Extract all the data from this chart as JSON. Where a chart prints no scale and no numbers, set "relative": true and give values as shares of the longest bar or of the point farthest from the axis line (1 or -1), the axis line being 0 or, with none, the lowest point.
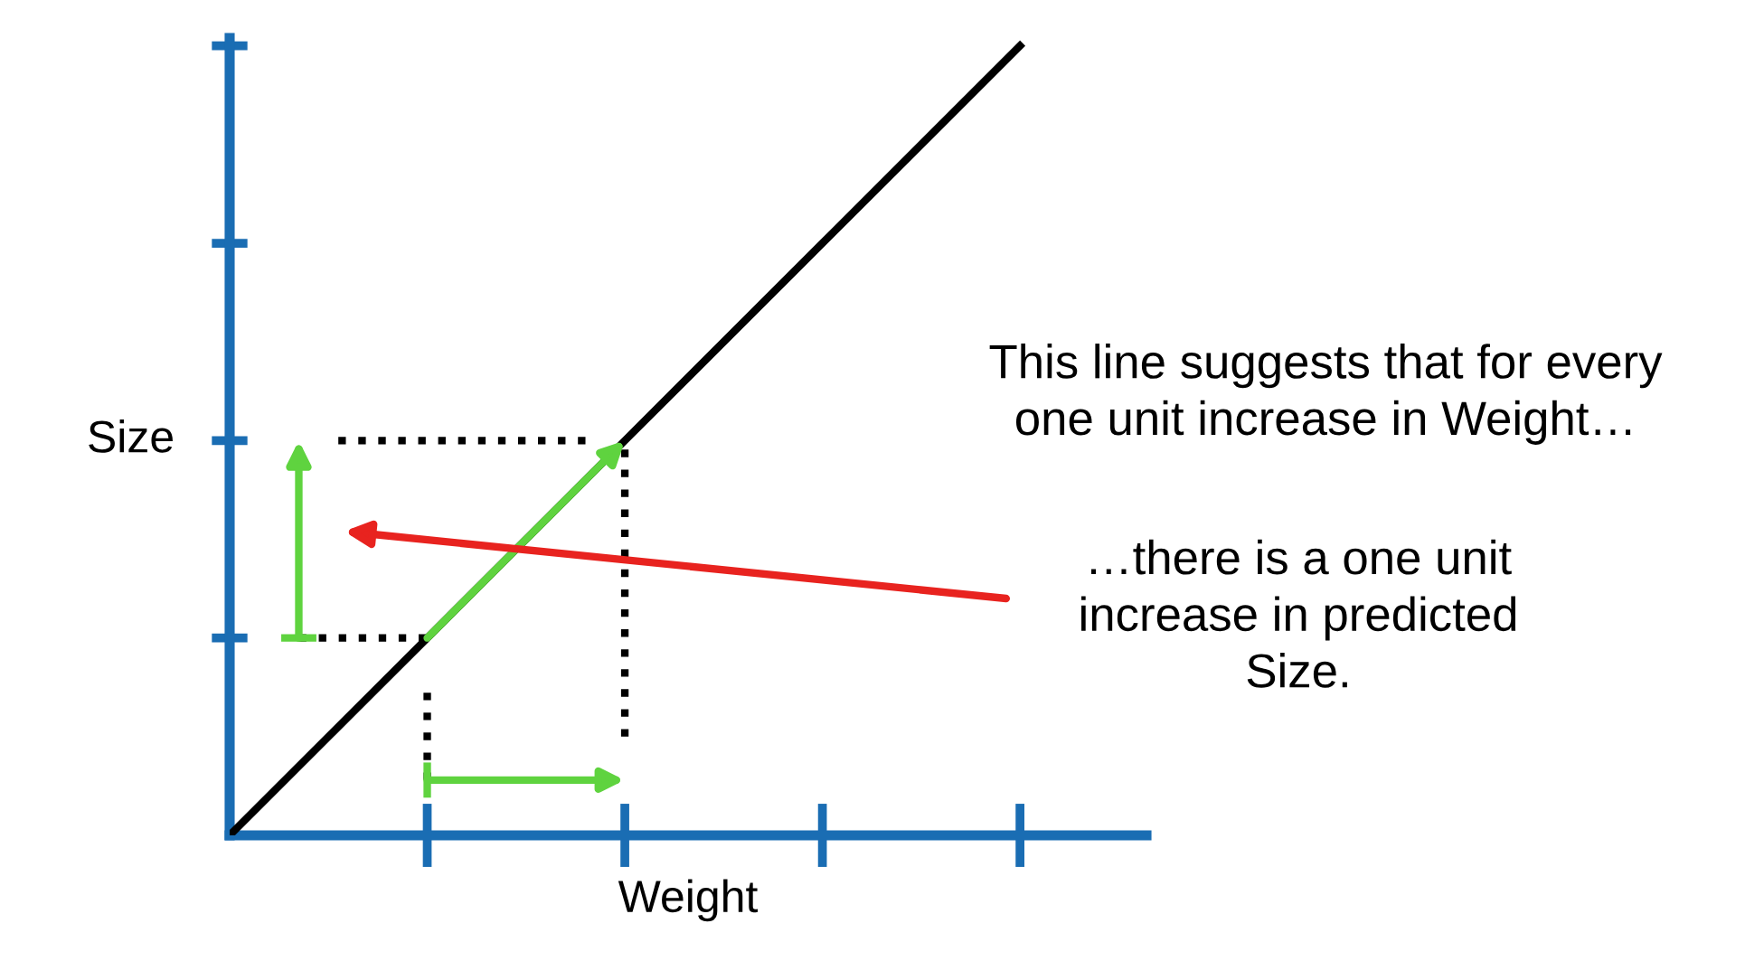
{
  "chart_data": {
    "type": "line",
    "categories": [
      null,
      null,
      null,
      null,
      null
    ],
    "relative": true,
    "series": [
      {
        "color": "#000000",
        "values": [
          0,
          0.25,
          0.5,
          0.75,
          1
        ]
      }
    ],
    "xlabel": "Weight",
    "ylabel": "Size",
    "grid": false,
    "legend": false,
    "marker": "none",
    "line_style": "solid",
    "annotations": [
      "This line suggests that for every\none unit increase in Weight…",
      "…there is a one unit\nincrease in predicted\nSize."
    ]
  }
}
